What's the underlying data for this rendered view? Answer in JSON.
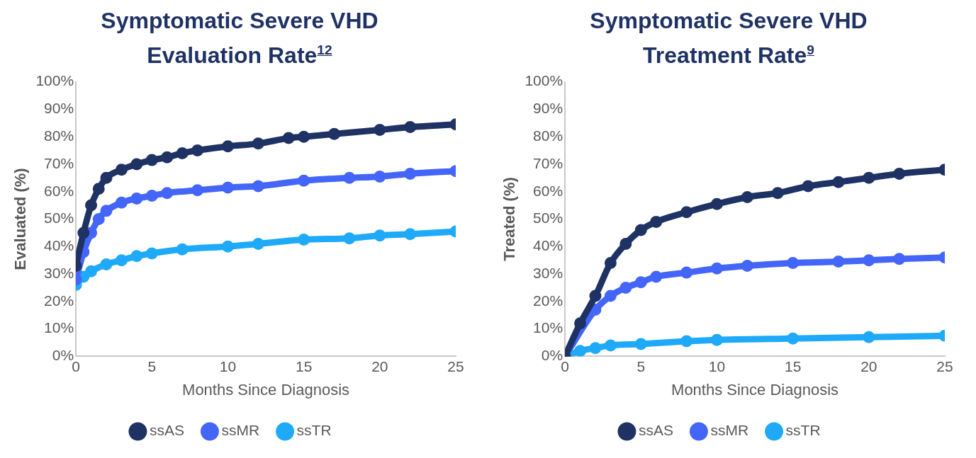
{
  "chart_data": [
    {
      "type": "line",
      "title": "Symptomatic Severe VHD Evaluation Rate$^{12}$",
      "xlabel": "Months Since Diagnosis",
      "ylabel": "Evaluated (%)",
      "xlim": [
        0,
        25
      ],
      "xticks": [
        0,
        5,
        10,
        15,
        20,
        25
      ],
      "ylim": [
        0,
        100
      ],
      "yticks": [
        {
          "value": 0,
          "label": "0%"
        },
        {
          "value": 10,
          "label": "10%"
        },
        {
          "value": 20,
          "label": "20%"
        },
        {
          "value": 30,
          "label": "30%"
        },
        {
          "value": 40,
          "label": "40%"
        },
        {
          "value": 50,
          "label": "50%"
        },
        {
          "value": 60,
          "label": "60%"
        },
        {
          "value": 70,
          "label": "70%"
        },
        {
          "value": 80,
          "label": "80%"
        },
        {
          "value": 90,
          "label": "90%"
        },
        {
          "value": 100,
          "label": "100%"
        }
      ],
      "grid": false,
      "legend": "bottom",
      "marker": "circle",
      "line_style": "solid",
      "series": [
        {
          "name": "ssAS",
          "color": "#1f3264",
          "x": [
            0,
            0.5,
            1,
            1.5,
            2,
            3,
            4,
            5,
            6,
            7,
            8,
            10,
            12,
            14,
            15,
            17,
            20,
            22,
            25
          ],
          "values": [
            33,
            45,
            55,
            61,
            65,
            68,
            70,
            71.5,
            72.5,
            74,
            75,
            76.5,
            77.5,
            79.5,
            80,
            81,
            82.5,
            83.5,
            84.5
          ]
        },
        {
          "name": "ssMR",
          "color": "#4466f8",
          "x": [
            0,
            0.5,
            1,
            1.5,
            2,
            3,
            4,
            5,
            6,
            8,
            10,
            12,
            15,
            18,
            20,
            22,
            25
          ],
          "values": [
            28,
            38,
            45,
            50,
            53,
            56,
            57.5,
            58.5,
            59.5,
            60.5,
            61.5,
            62,
            64,
            65,
            65.5,
            66.5,
            67.5
          ]
        },
        {
          "name": "ssTR",
          "color": "#1eaaf8",
          "x": [
            0,
            0.5,
            1,
            2,
            3,
            4,
            5,
            7,
            10,
            12,
            15,
            18,
            20,
            22,
            25
          ],
          "values": [
            26,
            29,
            31,
            33.5,
            35,
            36.5,
            37.5,
            39,
            40,
            41,
            42.5,
            43,
            44,
            44.5,
            45.5
          ]
        }
      ]
    },
    {
      "type": "line",
      "title": "Symptomatic Severe VHD Treatment Rate$^{9}$",
      "xlabel": "Months Since Diagnosis",
      "ylabel": "Treated (%)",
      "xlim": [
        0,
        25
      ],
      "xticks": [
        0,
        5,
        10,
        15,
        20,
        25
      ],
      "ylim": [
        0,
        100
      ],
      "yticks": [
        {
          "value": 0,
          "label": "0%"
        },
        {
          "value": 10,
          "label": "10%"
        },
        {
          "value": 20,
          "label": "20%"
        },
        {
          "value": 30,
          "label": "30%"
        },
        {
          "value": 40,
          "label": "40%"
        },
        {
          "value": 50,
          "label": "50%"
        },
        {
          "value": 60,
          "label": "60%"
        },
        {
          "value": 70,
          "label": "70%"
        },
        {
          "value": 80,
          "label": "80%"
        },
        {
          "value": 90,
          "label": "90%"
        },
        {
          "value": 100,
          "label": "100%"
        }
      ],
      "grid": false,
      "legend": "bottom",
      "marker": "circle",
      "line_style": "solid",
      "series": [
        {
          "name": "ssAS",
          "color": "#1f3264",
          "x": [
            0,
            1,
            2,
            3,
            4,
            5,
            6,
            8,
            10,
            12,
            14,
            16,
            18,
            20,
            22,
            25
          ],
          "values": [
            0,
            12,
            22,
            34,
            41,
            46,
            49,
            52.5,
            55.5,
            58,
            59.5,
            62,
            63.5,
            65,
            66.5,
            68
          ]
        },
        {
          "name": "ssMR",
          "color": "#4466f8",
          "x": [
            0,
            2,
            3,
            4,
            5,
            6,
            8,
            10,
            12,
            15,
            18,
            20,
            22,
            25
          ],
          "values": [
            0,
            17,
            22,
            25,
            27,
            29,
            30.5,
            32,
            33,
            34,
            34.5,
            35,
            35.5,
            36
          ]
        },
        {
          "name": "ssTR",
          "color": "#1eaaf8",
          "x": [
            0,
            1,
            2,
            3,
            5,
            8,
            10,
            15,
            20,
            25
          ],
          "values": [
            0,
            2,
            3,
            4,
            4.5,
            5.5,
            6,
            6.5,
            7,
            7.5
          ]
        }
      ]
    }
  ]
}
